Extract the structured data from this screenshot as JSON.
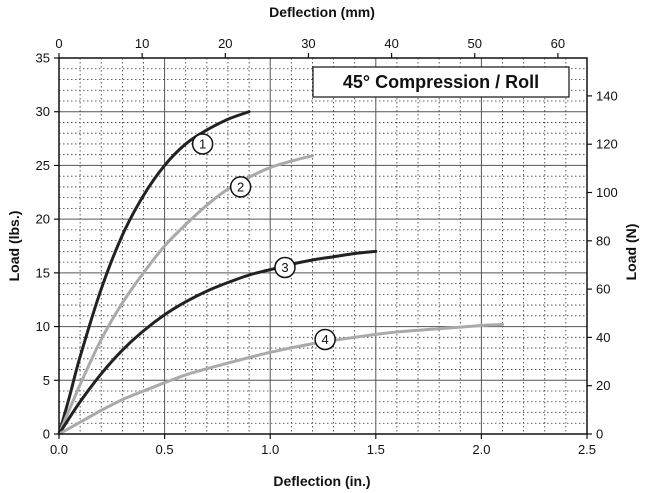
{
  "chart_data": {
    "type": "line",
    "title": "45° Compression / Roll",
    "xlabel": "Deflection (in.)",
    "ylabel": "Load (lbs.)",
    "x2label": "Deflection (mm)",
    "y2label": "Load (N)",
    "xlim": [
      0,
      2.5
    ],
    "ylim": [
      0,
      35
    ],
    "x2lim": [
      0,
      63.5
    ],
    "y2lim": [
      0,
      155.7
    ],
    "xticks": [
      "0.0",
      "0.5",
      "1.0",
      "1.5",
      "2.0",
      "2.5"
    ],
    "xtick_values": [
      0,
      0.5,
      1.0,
      1.5,
      2.0,
      2.5
    ],
    "yticks": [
      "0",
      "5",
      "10",
      "15",
      "20",
      "25",
      "30",
      "35"
    ],
    "ytick_values": [
      0,
      5,
      10,
      15,
      20,
      25,
      30,
      35
    ],
    "x2ticks": [
      "0",
      "10",
      "20",
      "30",
      "40",
      "50",
      "60"
    ],
    "x2tick_values": [
      0,
      10,
      20,
      30,
      40,
      50,
      60
    ],
    "y2ticks": [
      "0",
      "20",
      "40",
      "60",
      "80",
      "100",
      "120",
      "140"
    ],
    "y2tick_values": [
      0,
      20,
      40,
      60,
      80,
      100,
      120,
      140
    ],
    "grid": true,
    "series": [
      {
        "name": "1",
        "color": "#222222",
        "x": [
          0,
          0.05,
          0.1,
          0.2,
          0.3,
          0.4,
          0.5,
          0.6,
          0.7,
          0.8,
          0.9
        ],
        "y": [
          0,
          3.5,
          7.2,
          13.5,
          18.5,
          22.2,
          25.0,
          27.0,
          28.3,
          29.3,
          30.0
        ],
        "label_at": [
          0.68,
          27.0
        ]
      },
      {
        "name": "2",
        "color": "#aaaaaa",
        "x": [
          0,
          0.1,
          0.2,
          0.3,
          0.4,
          0.5,
          0.6,
          0.7,
          0.8,
          0.9,
          1.0,
          1.1,
          1.2
        ],
        "y": [
          0,
          4.6,
          8.8,
          12.2,
          15.0,
          17.5,
          19.5,
          21.3,
          22.8,
          23.9,
          24.8,
          25.4,
          25.9
        ],
        "label_at": [
          0.86,
          23.0
        ]
      },
      {
        "name": "3",
        "color": "#222222",
        "x": [
          0,
          0.1,
          0.2,
          0.3,
          0.4,
          0.5,
          0.6,
          0.7,
          0.8,
          0.9,
          1.0,
          1.1,
          1.2,
          1.3,
          1.4,
          1.5
        ],
        "y": [
          0,
          3.0,
          5.6,
          7.8,
          9.6,
          11.1,
          12.3,
          13.3,
          14.1,
          14.8,
          15.3,
          15.8,
          16.2,
          16.5,
          16.8,
          17.0
        ],
        "label_at": [
          1.07,
          15.5
        ]
      },
      {
        "name": "4",
        "color": "#aaaaaa",
        "x": [
          0,
          0.1,
          0.2,
          0.3,
          0.4,
          0.6,
          0.8,
          1.0,
          1.2,
          1.4,
          1.6,
          1.8,
          2.0,
          2.1
        ],
        "y": [
          0,
          1.1,
          2.2,
          3.2,
          4.0,
          5.5,
          6.6,
          7.6,
          8.4,
          9.0,
          9.5,
          9.8,
          10.1,
          10.2
        ],
        "label_at": [
          1.26,
          8.8
        ]
      }
    ]
  }
}
